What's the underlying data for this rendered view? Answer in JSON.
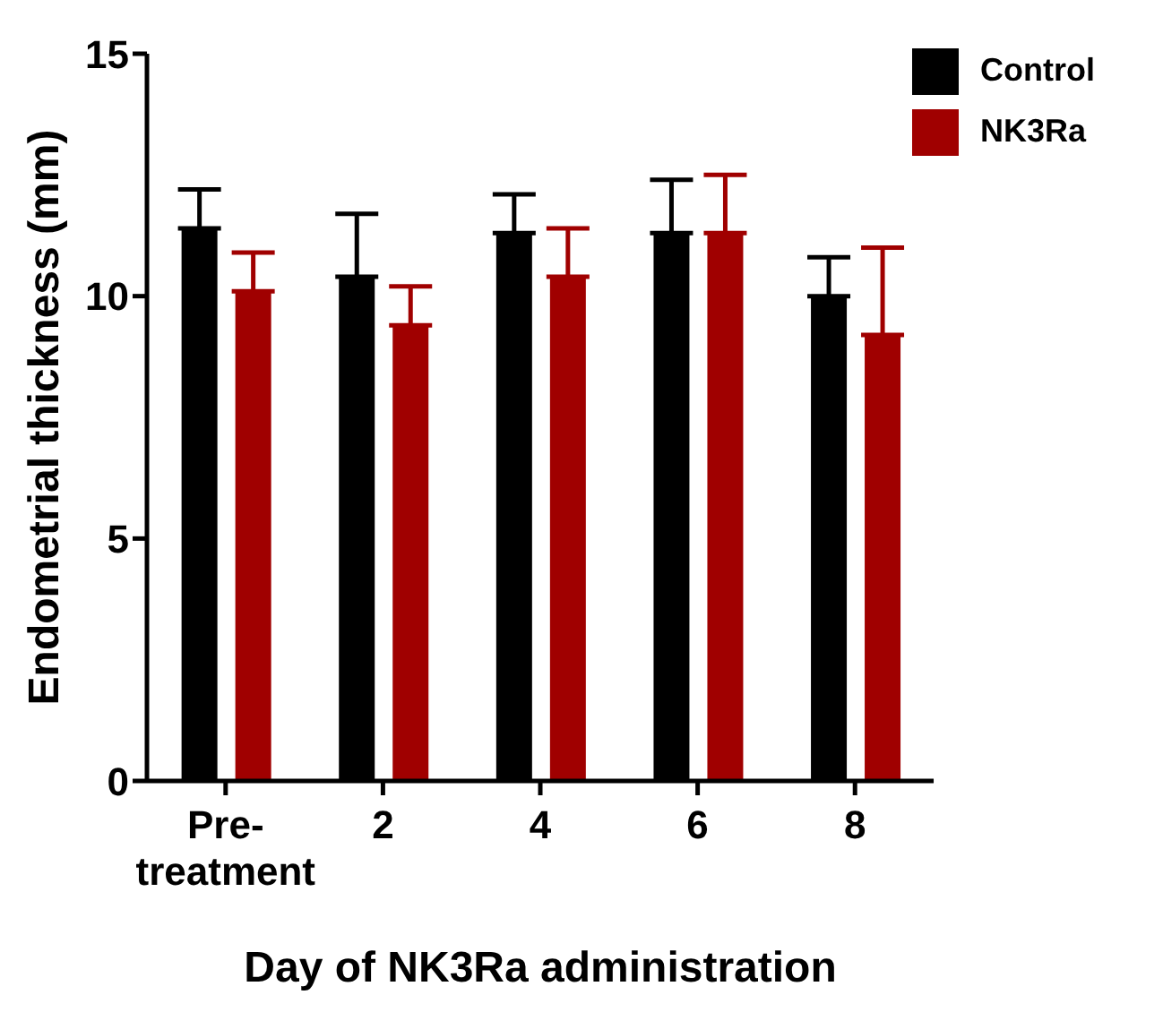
{
  "chart_data": {
    "type": "bar",
    "xlabel": "Day of NK3Ra administration",
    "ylabel": "Endometrial thickness (mm)",
    "categories": [
      "Pre-treatment",
      "2",
      "4",
      "6",
      "8"
    ],
    "series": [
      {
        "name": "Control",
        "color": "#000000",
        "values": [
          11.4,
          10.4,
          11.3,
          11.3,
          10.0
        ],
        "errors": [
          [
            11.4,
            12.2
          ],
          [
            10.4,
            11.7
          ],
          [
            11.3,
            12.1
          ],
          [
            11.3,
            12.4
          ],
          [
            10.0,
            10.8
          ]
        ]
      },
      {
        "name": "NK3Ra",
        "color": "#a00000",
        "values": [
          10.1,
          9.4,
          10.4,
          11.3,
          9.2
        ],
        "errors": [
          [
            10.1,
            10.9
          ],
          [
            9.4,
            10.2
          ],
          [
            10.4,
            11.4
          ],
          [
            11.3,
            12.5
          ],
          [
            9.2,
            11.0
          ]
        ]
      }
    ],
    "ylim": [
      0,
      15
    ],
    "yticks": [
      0,
      5,
      10,
      15
    ],
    "grid": false,
    "legend": "top right"
  }
}
